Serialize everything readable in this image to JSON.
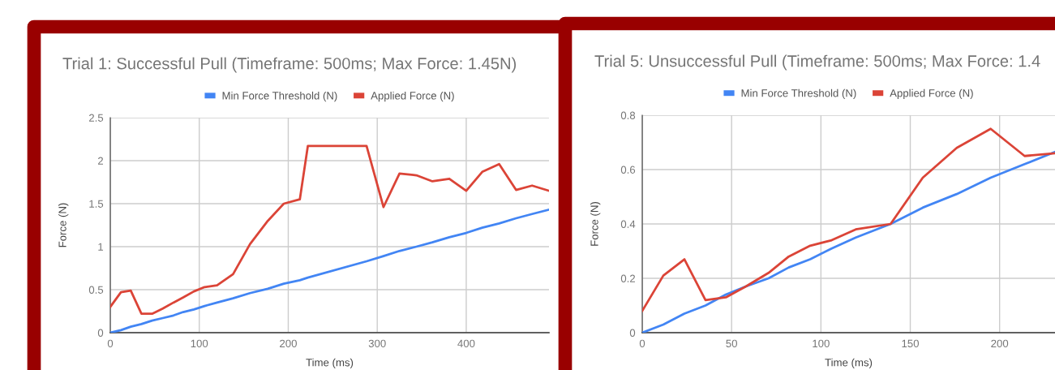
{
  "chart_data": [
    {
      "type": "line",
      "title": "Trial 1: Successful Pull (Timeframe: 500ms; Max Force: 1.45N)",
      "xlabel": "Time (ms)",
      "ylabel": "Force (N)",
      "x": [
        0,
        12,
        23,
        35,
        47,
        59,
        71,
        82,
        94,
        106,
        120,
        138,
        157,
        177,
        195,
        213,
        222,
        288,
        307,
        325,
        344,
        362,
        381,
        400,
        418,
        437,
        456,
        474,
        493
      ],
      "series": [
        {
          "name": "Min Force Threshold (N)",
          "color": "#4285f4",
          "values": [
            0,
            0.03,
            0.07,
            0.1,
            0.14,
            0.17,
            0.2,
            0.24,
            0.27,
            0.31,
            0.35,
            0.4,
            0.46,
            0.51,
            0.57,
            0.61,
            0.64,
            0.83,
            0.89,
            0.95,
            1.0,
            1.05,
            1.11,
            1.16,
            1.22,
            1.27,
            1.33,
            1.38,
            1.43
          ]
        },
        {
          "name": "Applied Force (N)",
          "color": "#db4437",
          "values": [
            0.3,
            0.47,
            0.49,
            0.22,
            0.22,
            0.28,
            0.35,
            0.41,
            0.48,
            0.53,
            0.55,
            0.68,
            1.03,
            1.3,
            1.5,
            1.55,
            2.17,
            2.17,
            1.46,
            1.85,
            1.83,
            1.76,
            1.79,
            1.65,
            1.87,
            1.96,
            1.66,
            1.71,
            1.65
          ]
        }
      ],
      "xlim": [
        0,
        493
      ],
      "xticks": [
        0,
        100,
        200,
        300,
        400
      ],
      "ylim": [
        0,
        2.5
      ],
      "yticks": [
        0,
        0.5,
        1,
        1.5,
        2,
        2.5
      ],
      "grid": true,
      "legend": "top",
      "marker": "none",
      "line_style": "solid"
    },
    {
      "type": "line",
      "title": "Trial 5: Unsuccessful Pull (Timeframe: 500ms; Max Force: 1.4",
      "xlabel": "Time (ms)",
      "ylabel": "Force (N)",
      "x": [
        0,
        11.8,
        23.6,
        35.4,
        46.8,
        58,
        70.7,
        82,
        94,
        106,
        119.5,
        139,
        157,
        176,
        195,
        214,
        231
      ],
      "series": [
        {
          "name": "Min Force Threshold (N)",
          "color": "#4285f4",
          "values": [
            0,
            0.03,
            0.07,
            0.1,
            0.14,
            0.17,
            0.2,
            0.24,
            0.27,
            0.31,
            0.35,
            0.4,
            0.46,
            0.51,
            0.57,
            0.62,
            0.665
          ]
        },
        {
          "name": "Applied Force (N)",
          "color": "#db4437",
          "values": [
            0.08,
            0.21,
            0.27,
            0.12,
            0.13,
            0.17,
            0.22,
            0.28,
            0.32,
            0.34,
            0.38,
            0.4,
            0.57,
            0.68,
            0.75,
            0.65,
            0.66
          ]
        }
      ],
      "xlim": [
        0,
        231
      ],
      "xticks": [
        0,
        50,
        100,
        150,
        200
      ],
      "ylim": [
        0,
        0.8
      ],
      "yticks": [
        0,
        0.2,
        0.4,
        0.6,
        0.8
      ],
      "grid": true,
      "legend": "top",
      "marker": "none",
      "line_style": "solid"
    }
  ]
}
